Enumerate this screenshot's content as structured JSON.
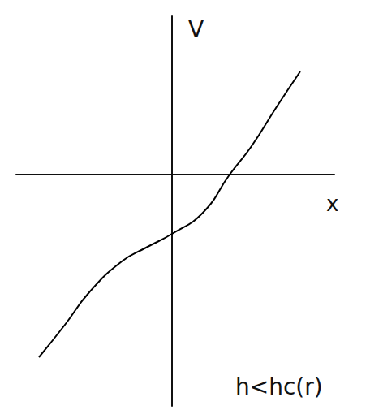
{
  "chart_data": {
    "type": "line",
    "x": [
      -3.28,
      -2.64,
      -2.04,
      -1.24,
      -0.64,
      0,
      0.76,
      1.42,
      1.96,
      2.56,
      3.16
    ],
    "values": [
      -4.5,
      -3.7,
      -2.9,
      -2.14,
      -1.8,
      -1.46,
      -0.94,
      0,
      0.7,
      1.64,
      2.54
    ],
    "xlim": [
      -3.84,
      4.0
    ],
    "ylim": [
      -5.7,
      3.9
    ],
    "xticks": [],
    "yticks": [],
    "xlabel": "x",
    "ylabel": "V",
    "annotation": "h<hc(r)",
    "color": "#000000",
    "grid": false,
    "tick_labels": false
  }
}
